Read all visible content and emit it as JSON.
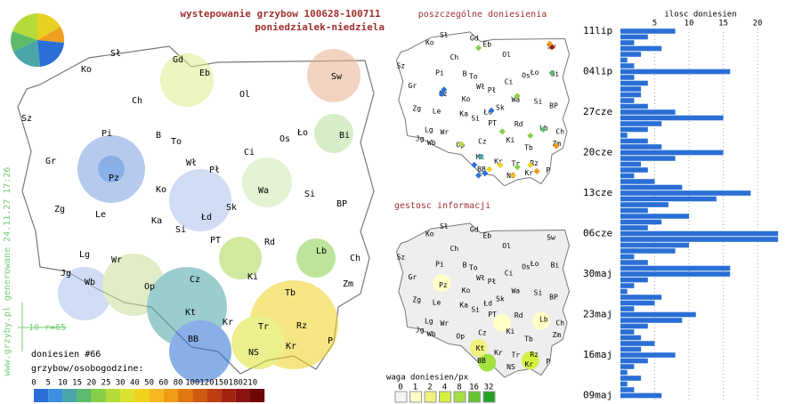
{
  "header": {
    "title": "wystepowanie grzybow 100628-100711",
    "subtitle": "poniedzialek-niedziela",
    "credit": "www.grzyby.pl generowane 24.11.27 17:26",
    "scale_note": "10 r=65",
    "report_count": "doniesien #66"
  },
  "map": {
    "labels": [
      "Sł",
      "Gd",
      "Eb",
      "Sw",
      "Ko",
      "Ch",
      "Ol",
      "Sz",
      "Pi",
      "B",
      "To",
      "Os",
      "Ło",
      "Bi",
      "Gr",
      "Wł",
      "Pł",
      "Ci",
      "Pz",
      "Ko",
      "Wa",
      "Si",
      "Zg",
      "Le",
      "Ka",
      "Łd",
      "Sk",
      "BP",
      "Si",
      "PT",
      "Rd",
      "Lb",
      "Lg",
      "Wr",
      "Ch",
      "Ki",
      "Jg",
      "Wb",
      "Op",
      "Cz",
      "Zm",
      "Tb",
      "Kt",
      "Kr",
      "Tr",
      "Rz",
      "BB",
      "Kr",
      "P",
      "NS"
    ]
  },
  "legend": {
    "title": "grzybow/osobogodzine:",
    "labels": [
      "0",
      "5",
      "10",
      "15",
      "20",
      "25",
      "30",
      "40",
      "50",
      "60",
      "80",
      "100",
      "120",
      "150",
      "180",
      "210"
    ],
    "colors": [
      "#2a6fd6",
      "#3d8fe0",
      "#4aa5a8",
      "#5dba6a",
      "#88cf48",
      "#b4dc38",
      "#dde22e",
      "#f0d21e",
      "#f5b81e",
      "#f09a18",
      "#e27812",
      "#d05a10",
      "#bb3d10",
      "#a22410",
      "#8a1410",
      "#6e0808"
    ]
  },
  "small_maps": {
    "reports_title": "poszczególne doniesienia",
    "density_title": "gestosc informacji",
    "weight_legend": {
      "title": "waga doniesien/px",
      "labels": [
        "0",
        "1",
        "2",
        "4",
        "8",
        "16",
        "32"
      ],
      "colors": [
        "#f2f2f2",
        "#ffffc8",
        "#f0f080",
        "#d4f040",
        "#a4e040",
        "#64c430",
        "#22a022"
      ]
    }
  },
  "chart_data": {
    "type": "bar",
    "orientation": "horizontal",
    "x_label": "ilosc doniesien",
    "color": "#2a6fd6",
    "grid": true,
    "categories": [
      "11lip",
      null,
      null,
      null,
      null,
      null,
      null,
      "04lip",
      null,
      null,
      null,
      null,
      null,
      null,
      "27cze",
      null,
      null,
      null,
      null,
      null,
      null,
      "20cze",
      null,
      null,
      null,
      null,
      null,
      null,
      "13cze",
      null,
      null,
      null,
      null,
      null,
      null,
      "06cze",
      null,
      null,
      null,
      null,
      null,
      null,
      "30maj",
      null,
      null,
      null,
      null,
      null,
      null,
      "23maj",
      null,
      null,
      null,
      null,
      null,
      null,
      "16maj",
      null,
      null,
      null,
      null,
      null,
      null,
      "09maj"
    ],
    "values": [
      8,
      4,
      2,
      6,
      3,
      1,
      2,
      16,
      2,
      4,
      3,
      3,
      2,
      4,
      8,
      15,
      6,
      4,
      1,
      4,
      6,
      15,
      8,
      3,
      4,
      2,
      5,
      9,
      19,
      14,
      7,
      4,
      10,
      6,
      4,
      23,
      23,
      10,
      8,
      2,
      4,
      16,
      16,
      4,
      2,
      1,
      6,
      5,
      2,
      11,
      9,
      4,
      2,
      3,
      5,
      3,
      8,
      4,
      2,
      1,
      3,
      1,
      2,
      6
    ],
    "xlim": [
      0,
      23.5
    ],
    "xticks": [
      5,
      10,
      15,
      20
    ]
  }
}
